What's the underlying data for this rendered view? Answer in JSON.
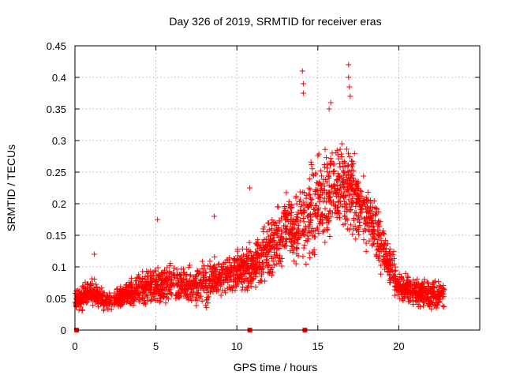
{
  "chart_data": {
    "type": "scatter",
    "title": "Day 326 of 2019, SRMTID for receiver eras",
    "xlabel": "GPS time / hours",
    "ylabel": "SRMTID / TECUs",
    "xlim": [
      0,
      25
    ],
    "ylim": [
      0,
      0.45
    ],
    "xticks": [
      0,
      5,
      10,
      15,
      20
    ],
    "yticks": [
      0,
      0.05,
      0.1,
      0.15,
      0.2,
      0.25,
      0.3,
      0.35,
      0.4,
      0.45
    ],
    "xtick_labels": [
      "0",
      "5",
      "10",
      "15",
      "20"
    ],
    "ytick_labels": [
      "0",
      "0.05",
      "0.1",
      "0.15",
      "0.2",
      "0.25",
      "0.3",
      "0.35",
      "0.4",
      "0.45"
    ],
    "grid": true,
    "marker": "+",
    "color": "#ff0000",
    "baseline_markers": [
      0.1,
      10.8,
      14.2
    ],
    "series": [
      {
        "name": "eras",
        "envelope": {
          "x": [
            0.0,
            1.0,
            2.0,
            3.0,
            4.0,
            5.0,
            6.0,
            7.0,
            8.0,
            9.0,
            10.0,
            11.0,
            12.0,
            13.0,
            14.0,
            15.0,
            16.0,
            17.0,
            18.0,
            19.0,
            20.0,
            21.0,
            22.0,
            22.8
          ],
          "mean": [
            0.045,
            0.06,
            0.045,
            0.055,
            0.065,
            0.07,
            0.075,
            0.07,
            0.075,
            0.085,
            0.095,
            0.1,
            0.13,
            0.16,
            0.17,
            0.2,
            0.23,
            0.22,
            0.19,
            0.13,
            0.07,
            0.06,
            0.055,
            0.055
          ],
          "spread": [
            0.02,
            0.03,
            0.02,
            0.025,
            0.03,
            0.04,
            0.04,
            0.035,
            0.045,
            0.04,
            0.04,
            0.05,
            0.06,
            0.07,
            0.09,
            0.1,
            0.1,
            0.1,
            0.08,
            0.06,
            0.03,
            0.03,
            0.03,
            0.025
          ]
        },
        "outliers": [
          {
            "x": 14.05,
            "y": 0.41
          },
          {
            "x": 14.1,
            "y": 0.39
          },
          {
            "x": 14.1,
            "y": 0.375
          },
          {
            "x": 16.9,
            "y": 0.42
          },
          {
            "x": 16.9,
            "y": 0.4
          },
          {
            "x": 16.95,
            "y": 0.385
          },
          {
            "x": 15.8,
            "y": 0.36
          },
          {
            "x": 15.7,
            "y": 0.35
          },
          {
            "x": 17.0,
            "y": 0.37
          },
          {
            "x": 5.1,
            "y": 0.175
          },
          {
            "x": 8.6,
            "y": 0.18
          },
          {
            "x": 1.2,
            "y": 0.12
          },
          {
            "x": 10.8,
            "y": 0.225
          }
        ]
      }
    ]
  }
}
